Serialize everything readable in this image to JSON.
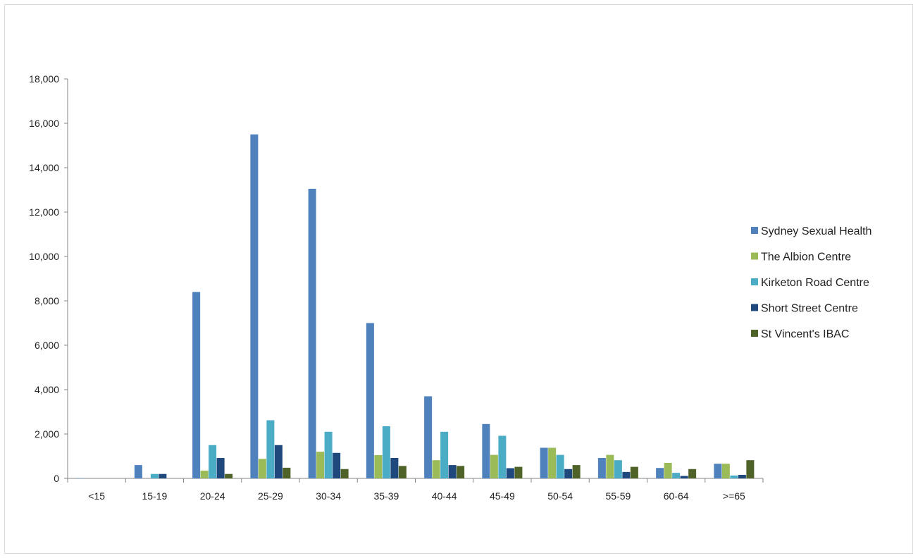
{
  "chart_data": {
    "type": "bar",
    "title": "",
    "xlabel": "",
    "ylabel": "",
    "categories": [
      "<15",
      "15-19",
      "20-24",
      "25-29",
      "30-34",
      "35-39",
      "40-44",
      "45-49",
      "50-54",
      "55-59",
      "60-64",
      ">=65"
    ],
    "ylim": [
      0,
      18000
    ],
    "yticks": [
      0,
      2000,
      4000,
      6000,
      8000,
      10000,
      12000,
      14000,
      16000,
      18000
    ],
    "ytick_labels": [
      "0",
      "2,000",
      "4,000",
      "6,000",
      "8,000",
      "10,000",
      "12,000",
      "14,000",
      "16,000",
      "18,000"
    ],
    "grid": false,
    "legend_position": "right",
    "series": [
      {
        "name": "Sydney Sexual Health",
        "color": "#4f81bd",
        "values": [
          15,
          600,
          8400,
          15500,
          13050,
          7000,
          3700,
          2450,
          1380,
          920,
          470,
          660
        ]
      },
      {
        "name": "The Albion Centre",
        "color": "#9bbb59",
        "values": [
          0,
          0,
          350,
          880,
          1200,
          1050,
          820,
          1060,
          1380,
          1060,
          700,
          660
        ]
      },
      {
        "name": "Kirketon Road Centre",
        "color": "#4bacc6",
        "values": [
          0,
          200,
          1500,
          2620,
          2100,
          2350,
          2100,
          1920,
          1060,
          820,
          250,
          130
        ]
      },
      {
        "name": "Short Street Centre",
        "color": "#1f497d",
        "values": [
          0,
          200,
          920,
          1500,
          1150,
          920,
          600,
          460,
          420,
          290,
          110,
          160
        ]
      },
      {
        "name": "St Vincent's IBAC",
        "color": "#4f6228",
        "values": [
          0,
          0,
          200,
          480,
          420,
          560,
          560,
          520,
          600,
          520,
          420,
          820
        ]
      }
    ]
  }
}
